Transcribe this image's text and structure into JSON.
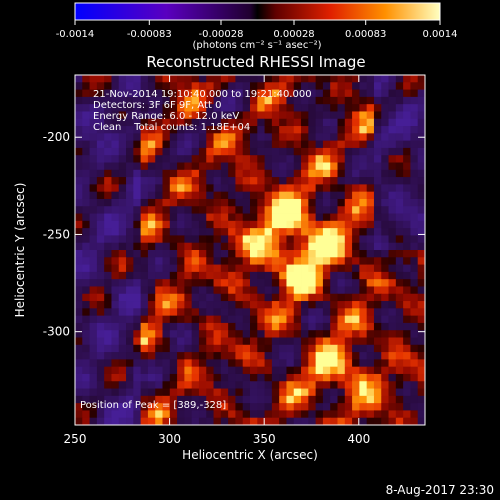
{
  "colorbar": {
    "ticks": [
      "-0.0014",
      "-0.00083",
      "-0.00028",
      "0.00028",
      "0.00083",
      "0.0014"
    ],
    "units": "(photons cm⁻² s⁻¹ asec⁻²)",
    "range": [
      -0.0014,
      0.0014
    ]
  },
  "chart_data": {
    "type": "heatmap",
    "title": "Reconstructed RHESSI Image",
    "xlabel": "Heliocentric X (arcsec)",
    "ylabel": "Heliocentric Y (arcsec)",
    "xlim": [
      250,
      435
    ],
    "ylim": [
      -348,
      -168
    ],
    "xticks": [
      250,
      300,
      350,
      400
    ],
    "yticks": [
      -200,
      -250,
      -300
    ],
    "peak": {
      "x": 389,
      "y": -328
    },
    "annotations": [
      "21-Nov-2014 19:10:40.000 to 19:21:40.000",
      "Detectors: 3F 6F 9F, Att 0",
      "Energy Range: 6.0 - 12.0 keV",
      "Clean    Total counts: 1.18E+04"
    ],
    "peak_label": "Position of Peak = [389,-328]",
    "colormap": "rhessi-bipolar (blue-purple negative, red-orange-yellow positive)"
  },
  "footer": {
    "timestamp": "8-Aug-2017 23:30"
  }
}
